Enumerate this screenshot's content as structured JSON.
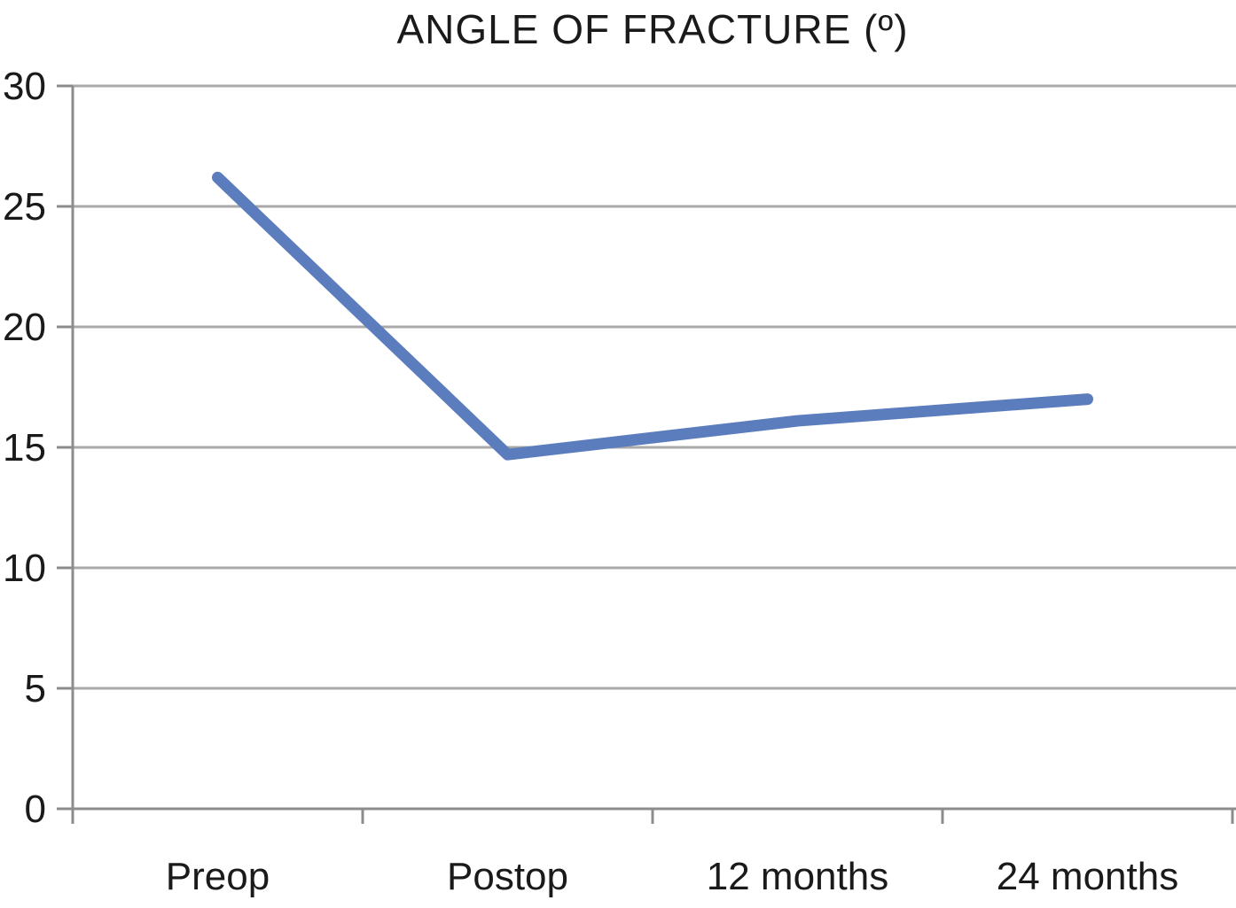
{
  "chart_data": {
    "type": "line",
    "title": "ANGLE OF FRACTURE (º)",
    "categories": [
      "Preop",
      "Postop",
      "12 months",
      "24 months"
    ],
    "series": [
      {
        "name": "Angle of fracture",
        "values": [
          26.2,
          14.7,
          16.1,
          17.0
        ]
      }
    ],
    "xlabel": "",
    "ylabel": "",
    "ylim": [
      0,
      30
    ],
    "yticks": [
      0,
      5,
      10,
      15,
      20,
      25,
      30
    ],
    "grid": true,
    "legend_position": "none",
    "colors": {
      "line": "#5b7dbd",
      "grid": "#a9a9a9",
      "axis": "#8c8c8c",
      "text": "#1a1a1a"
    }
  }
}
